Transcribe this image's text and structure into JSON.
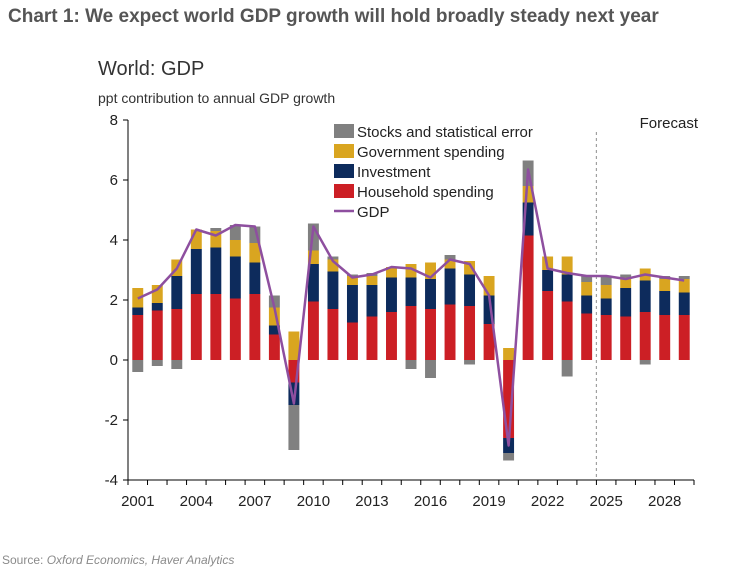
{
  "headline": "Chart 1: We expect world GDP growth will hold broadly steady next year",
  "source_label": "Source:",
  "source_text": "Oxford Economics, Haver Analytics",
  "colors": {
    "stocks": "#808080",
    "government": "#d9a520",
    "investment": "#0d2b5c",
    "household": "#cc1f25",
    "gdp": "#8e4f9f",
    "forecast_line": "#a0a0a0",
    "axis": "#000000"
  },
  "chart_data": {
    "type": "bar",
    "stacked": true,
    "title": "World: GDP",
    "ylabel": "ppt contribution to annual GDP growth",
    "ylim": [
      -4,
      8
    ],
    "yticks": [
      -4,
      -2,
      0,
      2,
      4,
      6,
      8
    ],
    "xticks": [
      "2001",
      "2004",
      "2007",
      "2010",
      "2013",
      "2016",
      "2019",
      "2022",
      "2025",
      "2028"
    ],
    "categories": [
      "2001",
      "2002",
      "2003",
      "2004",
      "2005",
      "2006",
      "2007",
      "2008",
      "2009",
      "2010",
      "2011",
      "2012",
      "2013",
      "2014",
      "2015",
      "2016",
      "2017",
      "2018",
      "2019",
      "2020",
      "2021",
      "2022",
      "2023",
      "2024",
      "2025",
      "2026",
      "2027",
      "2028",
      "2029"
    ],
    "forecast_start": 2024.5,
    "forecast_label": "Forecast",
    "legend_position": "top-center",
    "series": [
      {
        "name": "Household spending",
        "key": "household",
        "values": [
          1.5,
          1.65,
          1.7,
          2.2,
          2.2,
          2.05,
          2.2,
          0.85,
          -0.75,
          1.95,
          1.7,
          1.25,
          1.45,
          1.6,
          1.8,
          1.7,
          1.85,
          1.8,
          1.2,
          -2.6,
          4.15,
          2.3,
          1.95,
          1.55,
          1.5,
          1.45,
          1.6,
          1.5,
          1.5
        ]
      },
      {
        "name": "Investment",
        "key": "investment",
        "values": [
          0.25,
          0.25,
          1.1,
          1.5,
          1.55,
          1.4,
          1.05,
          0.3,
          -0.75,
          1.25,
          1.25,
          1.25,
          1.05,
          1.15,
          0.95,
          1.0,
          1.2,
          1.05,
          0.95,
          -0.5,
          1.1,
          0.7,
          0.9,
          0.6,
          0.55,
          0.95,
          1.05,
          0.8,
          0.75
        ]
      },
      {
        "name": "Government spending",
        "key": "government",
        "values": [
          0.65,
          0.6,
          0.55,
          0.65,
          0.55,
          0.55,
          0.65,
          0.6,
          0.95,
          0.45,
          0.4,
          0.3,
          0.3,
          0.35,
          0.45,
          0.55,
          0.3,
          0.45,
          0.65,
          0.4,
          0.55,
          0.45,
          0.6,
          0.45,
          0.45,
          0.35,
          0.4,
          0.4,
          0.45
        ]
      },
      {
        "name": "Stocks and statistical error",
        "key": "stocks",
        "values": [
          -0.4,
          -0.2,
          -0.3,
          0.0,
          0.1,
          0.5,
          0.55,
          0.4,
          -1.5,
          0.9,
          0.1,
          0.05,
          0.1,
          0.0,
          -0.3,
          -0.6,
          0.15,
          -0.15,
          0.0,
          -0.25,
          0.85,
          0.0,
          -0.55,
          0.2,
          0.3,
          0.1,
          -0.15,
          0.1,
          0.1
        ]
      },
      {
        "name": "GDP",
        "key": "gdp",
        "type": "line",
        "values": [
          2.05,
          2.35,
          3.05,
          4.35,
          4.15,
          4.5,
          4.45,
          1.75,
          -1.45,
          4.45,
          3.3,
          2.75,
          2.85,
          3.1,
          3.05,
          2.75,
          3.35,
          3.2,
          2.15,
          -2.85,
          6.35,
          3.05,
          2.9,
          2.8,
          2.8,
          2.7,
          2.85,
          2.75,
          2.65
        ]
      }
    ]
  }
}
